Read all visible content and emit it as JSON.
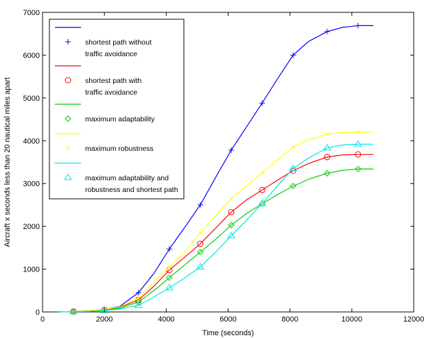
{
  "chart_data": {
    "type": "line",
    "title": "",
    "xlabel": "Time (seconds)",
    "ylabel": "Aircraft x seconds less than 20 nautical miles apart",
    "xlim": [
      0,
      12000
    ],
    "ylim": [
      0,
      7000
    ],
    "x_ticks": [
      0,
      2000,
      4000,
      6000,
      8000,
      10000,
      12000
    ],
    "y_ticks": [
      0,
      1000,
      2000,
      3000,
      4000,
      5000,
      6000,
      7000
    ],
    "grid": false,
    "legend_position": "top-left",
    "series": [
      {
        "name": "shortest path without traffic avoidance",
        "legend_lines": [
          "shortest path without",
          "traffic avoidance"
        ],
        "color": "#0000ff",
        "marker": "plus",
        "x": [
          500,
          1000,
          1500,
          2000,
          2500,
          3100,
          3600,
          4100,
          4600,
          5100,
          5600,
          6100,
          6600,
          7100,
          7600,
          8100,
          8600,
          9200,
          9700,
          10200,
          10700
        ],
        "y": [
          0,
          10,
          30,
          60,
          130,
          450,
          900,
          1470,
          1980,
          2500,
          3150,
          3780,
          4330,
          4880,
          5450,
          6000,
          6320,
          6550,
          6650,
          6690,
          6690
        ],
        "marker_x": [
          1000,
          2000,
          3100,
          4100,
          5100,
          6100,
          7100,
          8100,
          9200,
          10200
        ],
        "marker_y": [
          10,
          60,
          450,
          1470,
          2500,
          3780,
          4880,
          6000,
          6550,
          6690
        ]
      },
      {
        "name": "shortest path with traffic avoidance",
        "legend_lines": [
          "shortest path with",
          "traffic avoidance"
        ],
        "color": "#ff0000",
        "marker": "circle",
        "x": [
          500,
          1000,
          1500,
          2000,
          2500,
          3100,
          3600,
          4100,
          4600,
          5100,
          5600,
          6100,
          6600,
          7100,
          7600,
          8100,
          8600,
          9200,
          9700,
          10200,
          10700
        ],
        "y": [
          0,
          10,
          30,
          50,
          110,
          280,
          600,
          980,
          1280,
          1590,
          1960,
          2330,
          2620,
          2850,
          3080,
          3300,
          3470,
          3620,
          3670,
          3680,
          3680
        ],
        "marker_x": [
          1000,
          2000,
          3100,
          4100,
          5100,
          6100,
          7100,
          8100,
          9200,
          10200
        ],
        "marker_y": [
          10,
          50,
          280,
          980,
          1590,
          2330,
          2850,
          3300,
          3620,
          3680
        ]
      },
      {
        "name": "maximum adaptability",
        "legend_lines": [
          "maximum adaptability"
        ],
        "color": "#00cc00",
        "marker": "diamond",
        "x": [
          500,
          1000,
          1500,
          2000,
          2500,
          3100,
          3600,
          4100,
          4600,
          5100,
          5600,
          6100,
          6600,
          7100,
          7600,
          8100,
          8600,
          9200,
          9700,
          10200,
          10700
        ],
        "y": [
          0,
          10,
          20,
          40,
          90,
          230,
          500,
          800,
          1100,
          1400,
          1700,
          2030,
          2300,
          2530,
          2740,
          2940,
          3100,
          3240,
          3310,
          3340,
          3340
        ],
        "marker_x": [
          1000,
          2000,
          3100,
          4100,
          5100,
          6100,
          7100,
          8100,
          9200,
          10200
        ],
        "marker_y": [
          10,
          40,
          230,
          800,
          1400,
          2030,
          2530,
          2940,
          3240,
          3340
        ]
      },
      {
        "name": "maximum robustness",
        "legend_lines": [
          "maximum robustness"
        ],
        "color": "#ffff00",
        "marker": "x",
        "x": [
          500,
          1000,
          1500,
          2000,
          2500,
          3100,
          3600,
          4100,
          4600,
          5100,
          5600,
          6100,
          6600,
          7100,
          7600,
          8100,
          8600,
          9200,
          9700,
          10200,
          10700
        ],
        "y": [
          0,
          10,
          30,
          60,
          120,
          320,
          700,
          1050,
          1400,
          1850,
          2250,
          2650,
          2950,
          3250,
          3550,
          3850,
          4020,
          4150,
          4190,
          4200,
          4200
        ],
        "marker_x": [
          1000,
          2000,
          3100,
          4100,
          5100,
          6100,
          7100,
          8100,
          9200,
          10200
        ],
        "marker_y": [
          10,
          60,
          320,
          1050,
          1850,
          2650,
          3250,
          3850,
          4150,
          4200
        ]
      },
      {
        "name": "maximum adaptability and robustness and shortest path",
        "legend_lines": [
          "maximum adaptability and",
          "robustness and shortest path"
        ],
        "color": "#00e5e5",
        "marker": "triangle",
        "x": [
          500,
          1000,
          1500,
          2000,
          2500,
          3100,
          3600,
          4100,
          4600,
          5100,
          5600,
          6100,
          6600,
          7100,
          7600,
          8100,
          8600,
          9200,
          9700,
          10200,
          10700
        ],
        "y": [
          0,
          5,
          15,
          30,
          70,
          150,
          350,
          560,
          800,
          1050,
          1400,
          1780,
          2150,
          2530,
          2950,
          3350,
          3600,
          3830,
          3900,
          3920,
          3920
        ],
        "marker_x": [
          1000,
          2000,
          3100,
          4100,
          5100,
          6100,
          7100,
          8100,
          9200,
          10200
        ],
        "marker_y": [
          5,
          30,
          150,
          560,
          1050,
          1780,
          2530,
          3350,
          3830,
          3920
        ]
      }
    ]
  }
}
